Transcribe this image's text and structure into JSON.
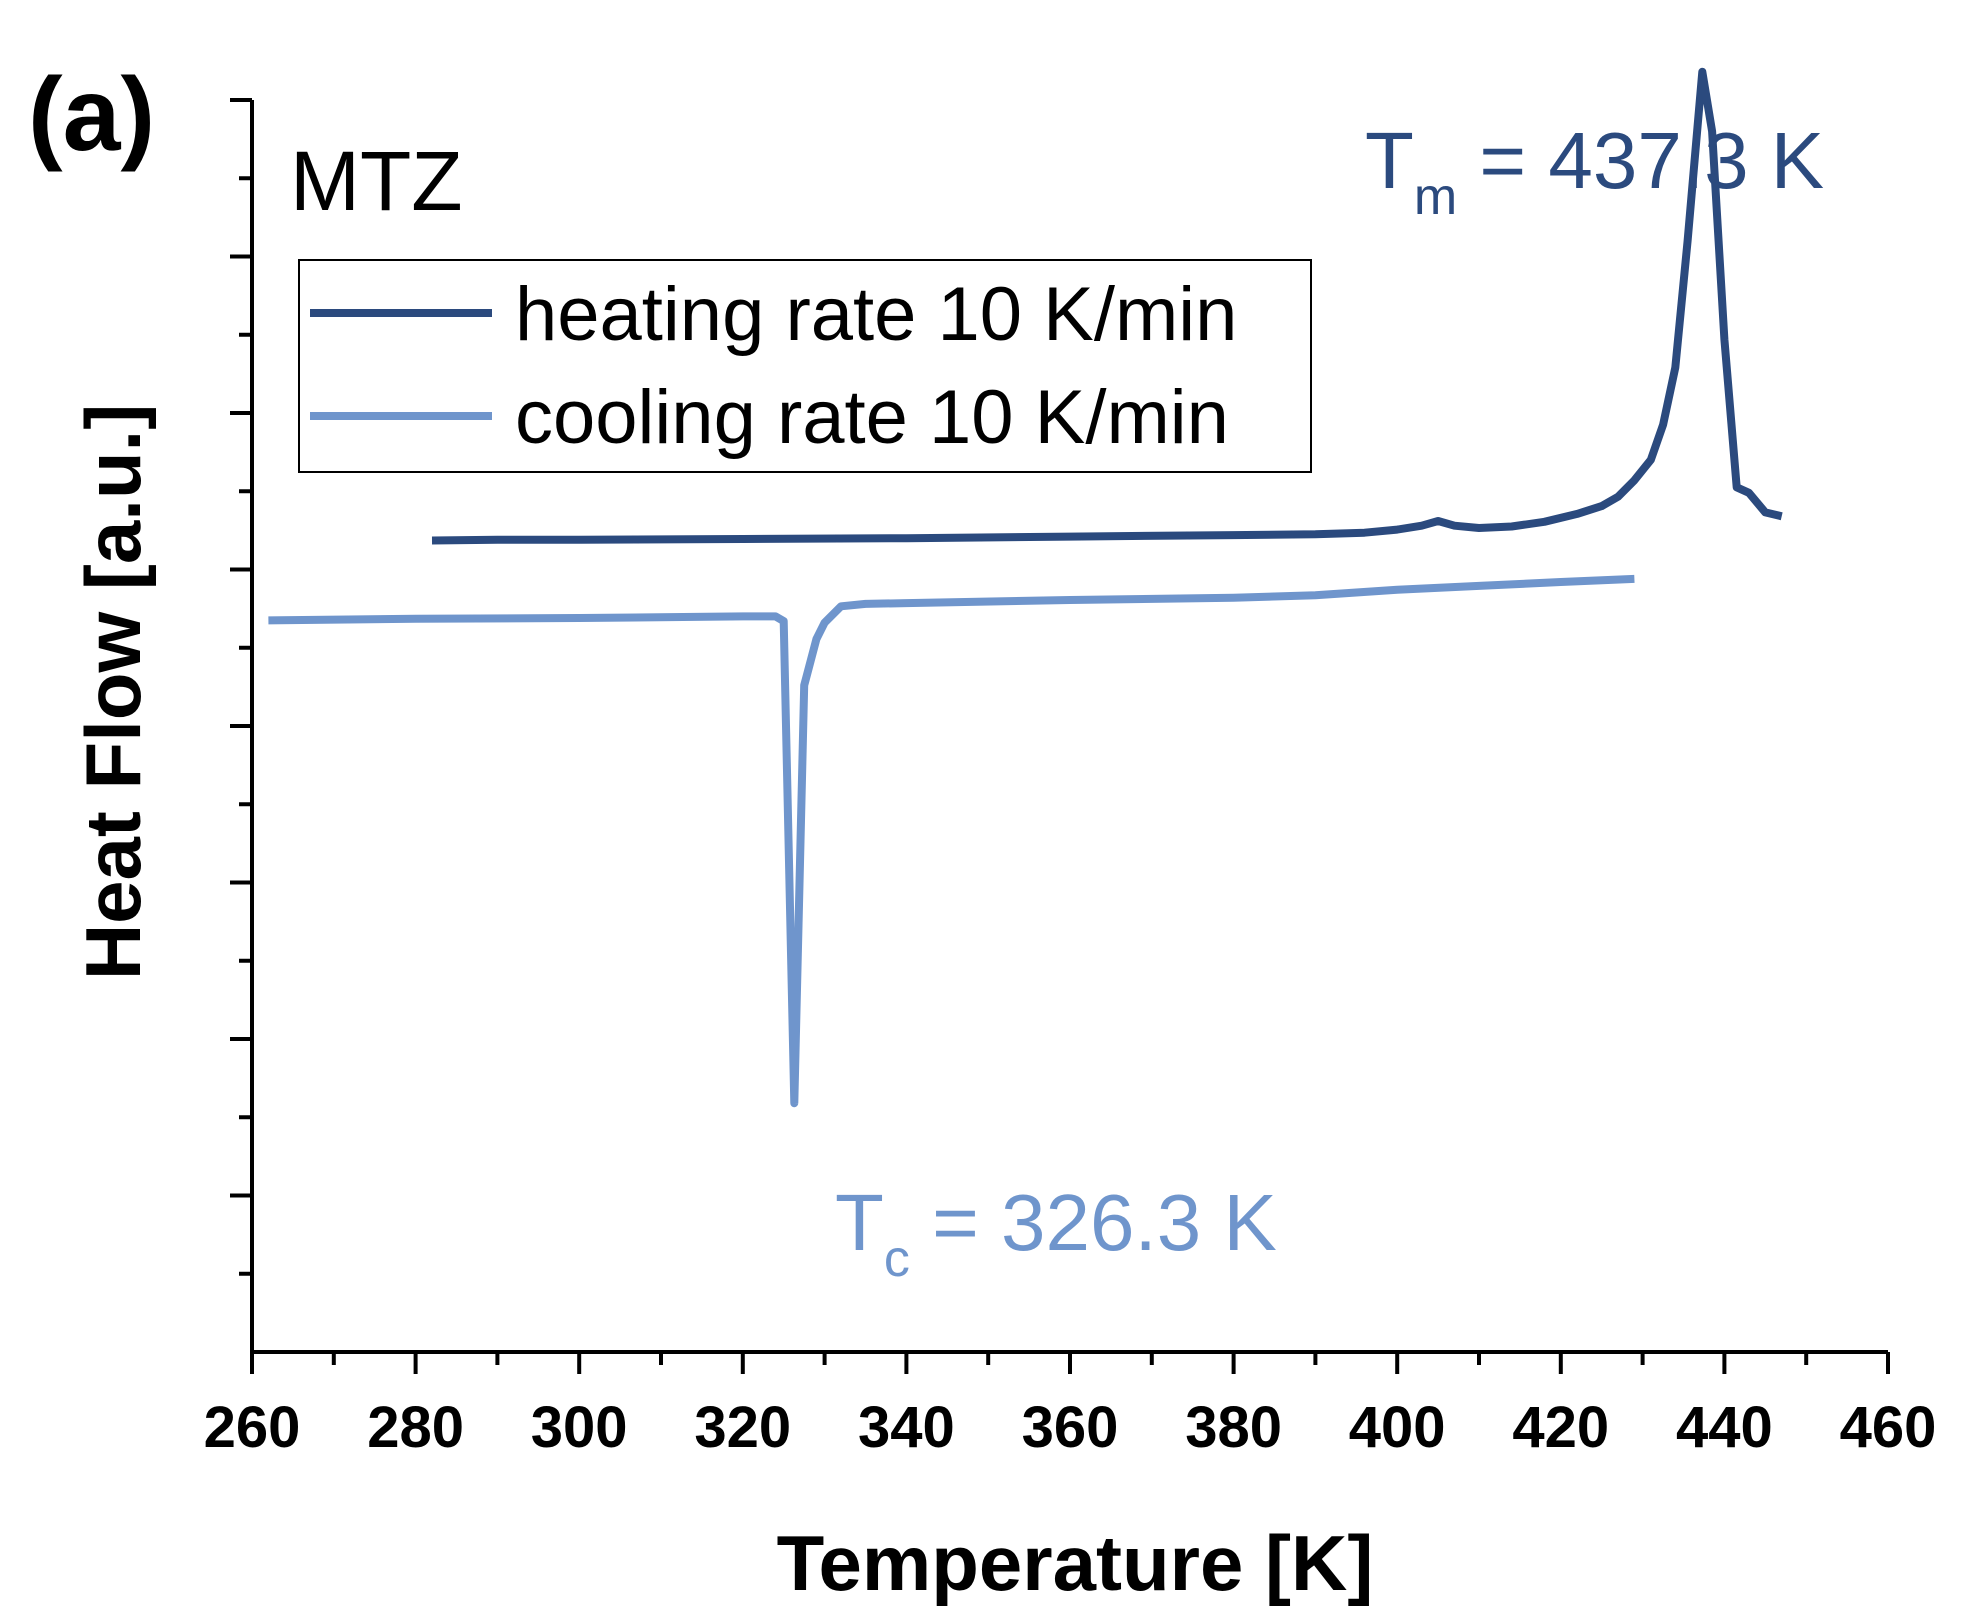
{
  "chart_data": {
    "type": "line",
    "panel_label": "(a)",
    "sample_label": "MTZ",
    "xlabel": "Temperature [K]",
    "ylabel": "Heat Flow [a.u.]",
    "xlim": [
      260,
      460
    ],
    "ylim": [
      -10,
      6
    ],
    "x_ticks": [
      260,
      280,
      300,
      320,
      340,
      360,
      380,
      400,
      420,
      440,
      460
    ],
    "x_minor_step": 10,
    "y_major_ticks": [
      -10,
      -8,
      -6,
      -4,
      -2,
      0,
      2,
      4,
      6
    ],
    "y_minor_step": 1,
    "y_tick_labels_shown": false,
    "grid": false,
    "legend_position": "top-left",
    "series": [
      {
        "name": "heating rate 10 K/min",
        "color": "#2b4a7e",
        "x": [
          282,
          290,
          300,
          320,
          340,
          360,
          380,
          390,
          396,
          400,
          403,
          405,
          407,
          410,
          414,
          418,
          422,
          425,
          427,
          429,
          431,
          432.5,
          434,
          435.5,
          437.3,
          438.5,
          440,
          441.5,
          443,
          445,
          447
        ],
        "y": [
          0.37,
          0.38,
          0.38,
          0.39,
          0.4,
          0.42,
          0.44,
          0.45,
          0.47,
          0.51,
          0.56,
          0.62,
          0.56,
          0.53,
          0.55,
          0.61,
          0.71,
          0.81,
          0.93,
          1.14,
          1.4,
          1.85,
          2.58,
          4.2,
          6.36,
          5.6,
          2.94,
          1.05,
          0.98,
          0.73,
          0.68
        ]
      },
      {
        "name": "cooling rate 10 K/min",
        "color": "#6f95cc",
        "x": [
          262,
          280,
          300,
          320,
          324,
          325,
          326.3,
          327.5,
          329,
          330,
          332,
          335,
          340,
          360,
          380,
          390,
          400,
          410,
          420,
          429
        ],
        "y": [
          -0.65,
          -0.63,
          -0.62,
          -0.6,
          -0.6,
          -0.66,
          -6.82,
          -1.48,
          -0.89,
          -0.68,
          -0.47,
          -0.44,
          -0.43,
          -0.39,
          -0.36,
          -0.33,
          -0.26,
          -0.21,
          -0.16,
          -0.12
        ]
      }
    ],
    "annotations": [
      {
        "main": "T",
        "sub": "m",
        "rest": " = 437.3 K",
        "color": "#2b4a7e"
      },
      {
        "main": "T",
        "sub": "c",
        "rest": " = 326.3 K",
        "color": "#6f95cc"
      }
    ]
  }
}
